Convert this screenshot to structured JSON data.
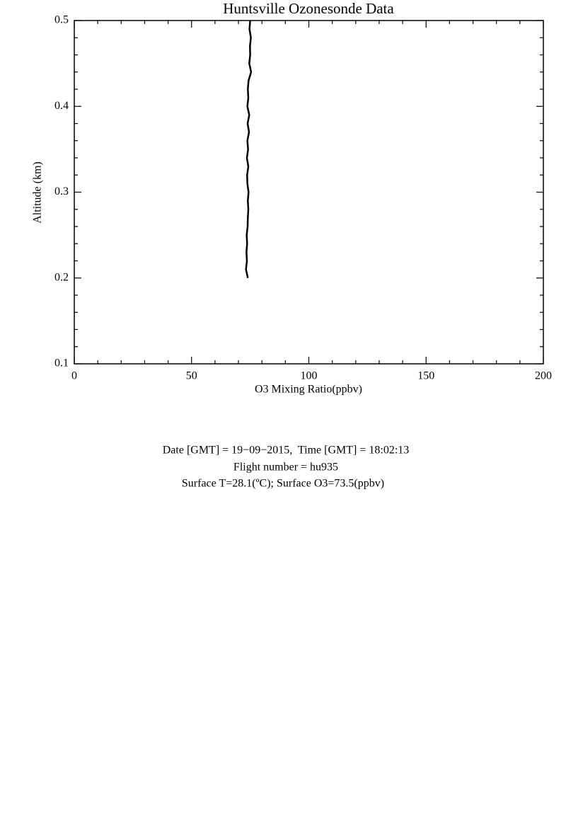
{
  "chart_data": {
    "type": "line",
    "title": "Huntsville Ozonesonde Data",
    "x_label": "O3 Mixing Ratio(ppbv)",
    "y_label": "Altitude (km)",
    "x": [
      74.0,
      73.2,
      73.6,
      73.4,
      73.7,
      73.5,
      73.9,
      74.0,
      74.2,
      74.0,
      74.3,
      73.8,
      73.7,
      74.2,
      73.6,
      74.1,
      73.8,
      74.5,
      73.9,
      74.6,
      73.8,
      74.2,
      74.0,
      74.3,
      75.4,
      74.6,
      75.0,
      74.9,
      75.3,
      74.7,
      75.0
    ],
    "values": [
      0.2,
      0.21,
      0.22,
      0.23,
      0.24,
      0.25,
      0.26,
      0.27,
      0.28,
      0.29,
      0.3,
      0.31,
      0.32,
      0.33,
      0.34,
      0.35,
      0.36,
      0.37,
      0.38,
      0.39,
      0.4,
      0.41,
      0.42,
      0.43,
      0.44,
      0.45,
      0.46,
      0.47,
      0.48,
      0.49,
      0.5
    ],
    "color": "#000000",
    "xlim": [
      0,
      200
    ],
    "xticks": [
      0,
      50,
      100,
      150,
      200
    ],
    "xminorticks": [
      10,
      20,
      30,
      40,
      60,
      70,
      80,
      90,
      110,
      120,
      130,
      140,
      160,
      170,
      180,
      190
    ],
    "ylim": [
      0.1,
      0.5
    ],
    "yticks": [
      0.1,
      0.2,
      0.3,
      0.4,
      0.5
    ],
    "yminorticks": [
      0.12,
      0.14,
      0.16,
      0.18,
      0.22,
      0.24,
      0.26,
      0.28,
      0.32,
      0.34,
      0.36,
      0.38,
      0.42,
      0.44,
      0.46,
      0.48
    ],
    "annotations": [
      "Date [GMT] = 19−09−2015,  Time [GMT] = 18:02:13",
      "Flight number = hu935",
      "Surface T=28.1(ºC); Surface O3=73.5(ppbv)"
    ]
  }
}
